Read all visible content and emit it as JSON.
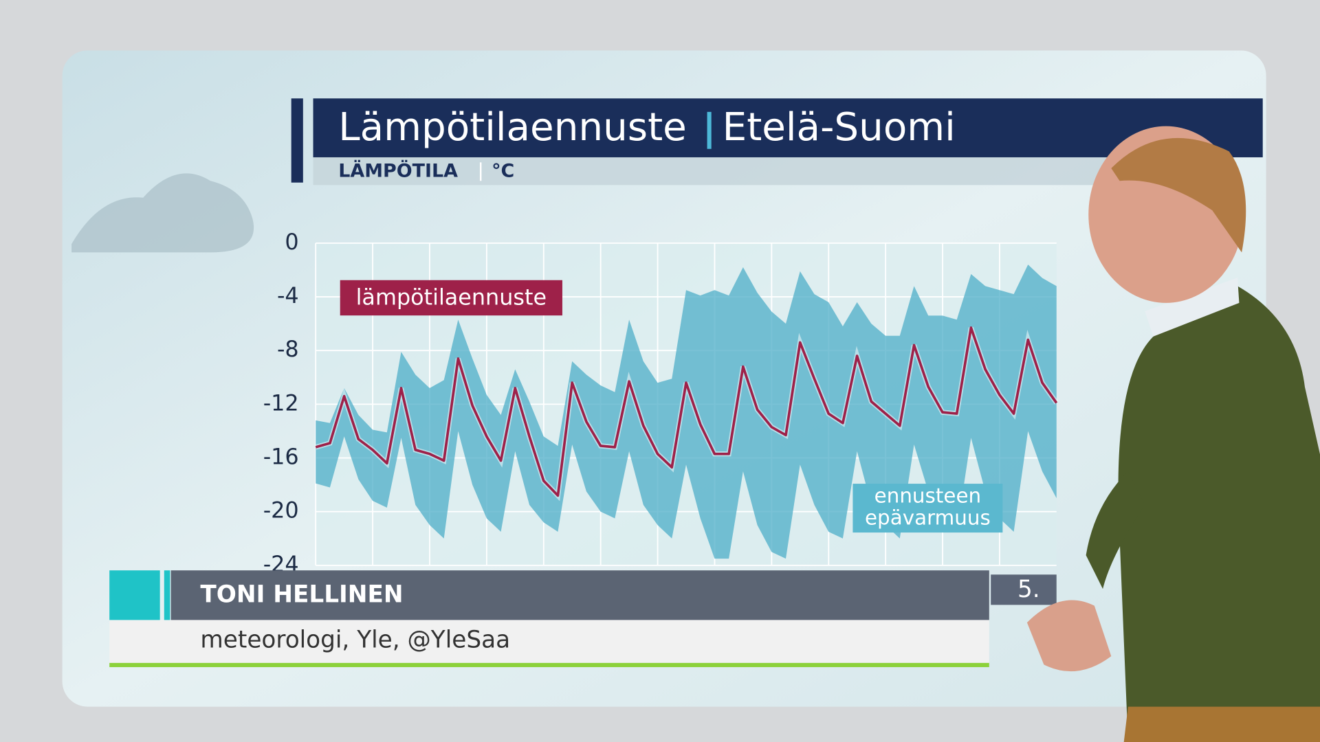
{
  "chart_data": {
    "type": "line",
    "title": "Lämpötilaennuste",
    "region": "Etelä-Suomi",
    "subtitle": "LÄMPÖTILA",
    "unit": "°C",
    "series": [
      {
        "name": "lämpötilaennuste",
        "color": "#9e2149",
        "values": [
          -15.2,
          -14.9,
          -11.4,
          -14.6,
          -15.4,
          -16.4,
          -10.8,
          -15.4,
          -15.7,
          -16.2,
          -8.6,
          -12.1,
          -14.4,
          -16.2,
          -10.8,
          -14.4,
          -17.7,
          -18.8,
          -10.4,
          -13.3,
          -15.1,
          -15.2,
          -10.3,
          -13.6,
          -15.7,
          -16.7,
          -10.4,
          -13.5,
          -15.7,
          -15.7,
          -9.2,
          -12.4,
          -13.7,
          -14.3,
          -7.4,
          -10.1,
          -12.7,
          -13.4,
          -8.4,
          -11.8,
          -12.7,
          -13.6,
          -7.6,
          -10.7,
          -12.6,
          -12.7,
          -6.3,
          -9.4,
          -11.3,
          -12.7,
          -7.2,
          -10.4,
          -11.9
        ]
      }
    ],
    "band": {
      "name": "ennusteen epävarmuus",
      "color": "#4eaec8",
      "upper": [
        -13.2,
        -13.4,
        -10.8,
        -12.8,
        -13.9,
        -14.1,
        -8.1,
        -9.8,
        -10.8,
        -10.2,
        -5.7,
        -8.6,
        -11.3,
        -12.8,
        -9.4,
        -11.8,
        -14.4,
        -15.1,
        -8.8,
        -9.8,
        -10.6,
        -11.1,
        -5.7,
        -8.8,
        -10.4,
        -10.1,
        -3.5,
        -3.9,
        -3.5,
        -3.9,
        -1.8,
        -3.7,
        -5.1,
        -6.0,
        -2.1,
        -3.8,
        -4.4,
        -6.2,
        -4.4,
        -6.0,
        -6.9,
        -6.9,
        -3.2,
        -5.4,
        -5.4,
        -5.7,
        -2.3,
        -3.2,
        -3.5,
        -3.8,
        -1.6,
        -2.6,
        -3.2
      ],
      "lower": [
        -17.9,
        -18.2,
        -14.4,
        -17.6,
        -19.2,
        -19.7,
        -14.5,
        -19.5,
        -21.0,
        -22.0,
        -14.0,
        -18.0,
        -20.5,
        -21.5,
        -15.5,
        -19.5,
        -20.8,
        -21.5,
        -15.0,
        -18.5,
        -20.0,
        -20.5,
        -15.5,
        -19.5,
        -21.0,
        -22.0,
        -16.5,
        -20.5,
        -23.5,
        -23.5,
        -17.0,
        -21.0,
        -23.0,
        -23.5,
        -16.5,
        -19.5,
        -21.5,
        -22.0,
        -15.5,
        -19.5,
        -21.0,
        -22.0,
        -15.0,
        -18.5,
        -20.5,
        -21.5,
        -14.5,
        -18.5,
        -20.5,
        -21.5,
        -14.0,
        -17.0,
        -19.0
      ]
    },
    "x_labels": [
      "5."
    ],
    "ylim": [
      -24,
      0
    ],
    "yticks": [
      0,
      -4,
      -8,
      -12,
      -16,
      -20,
      -24
    ],
    "grid": true
  },
  "lower_third": {
    "name": "TONI HELLINEN",
    "role": "meteorologi, Yle, @YleSaa"
  }
}
